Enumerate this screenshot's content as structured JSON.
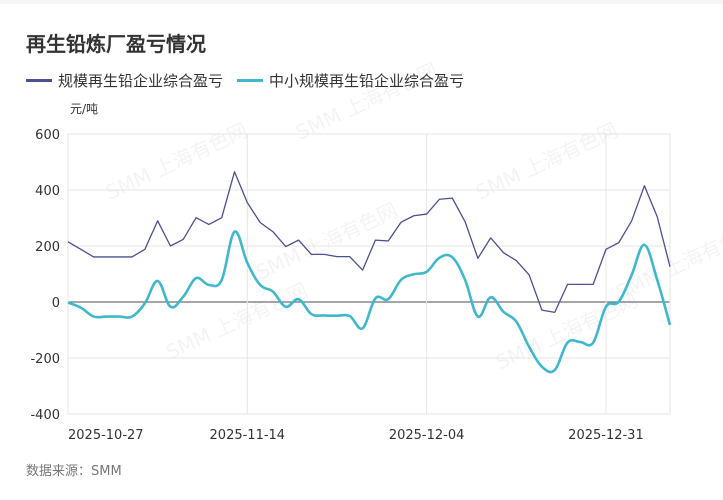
{
  "title": "再生铅炼厂盈亏情况",
  "unit": "元/吨",
  "source": "数据来源：SMM",
  "watermark": "SMM 上海有色网",
  "chart_data": {
    "type": "line",
    "title": "再生铅炼厂盈亏情况",
    "ylabel": "元/吨",
    "ylim": [
      -400,
      600
    ],
    "yticks": [
      600,
      400,
      200,
      0,
      -200,
      -400
    ],
    "x_tick_labels": [
      "2025-10-27",
      "2025-11-14",
      "2025-12-04",
      "2025-12-31"
    ],
    "x_tick_indices": [
      0,
      14,
      28,
      42
    ],
    "grid": true,
    "legend": "top-left",
    "series": [
      {
        "name": "规模再生铅企业综合盈亏",
        "color": "#4b4f94",
        "smooth": false,
        "values": [
          215,
          188,
          161,
          161,
          161,
          161,
          188,
          290,
          200,
          224,
          301,
          277,
          301,
          465,
          355,
          284,
          251,
          198,
          221,
          170,
          170,
          162,
          162,
          114,
          221,
          218,
          285,
          308,
          314,
          367,
          371,
          287,
          156,
          229,
          176,
          148,
          97,
          -29,
          -37,
          63,
          63,
          63,
          188,
          212,
          289,
          415,
          305,
          126
        ]
      },
      {
        "name": "中小规模再生铅企业综合盈亏",
        "color": "#3fb8cc",
        "smooth": true,
        "values": [
          -2,
          -20,
          -52,
          -52,
          -52,
          -52,
          -5,
          75,
          -17,
          19,
          85,
          61,
          79,
          251,
          140,
          61,
          37,
          -17,
          10,
          -43,
          -48,
          -49,
          -50,
          -94,
          13,
          10,
          79,
          99,
          108,
          158,
          160,
          79,
          -52,
          17,
          -35,
          -70,
          -160,
          -231,
          -243,
          -145,
          -143,
          -145,
          -17,
          1,
          96,
          204,
          79,
          -82
        ]
      }
    ]
  }
}
